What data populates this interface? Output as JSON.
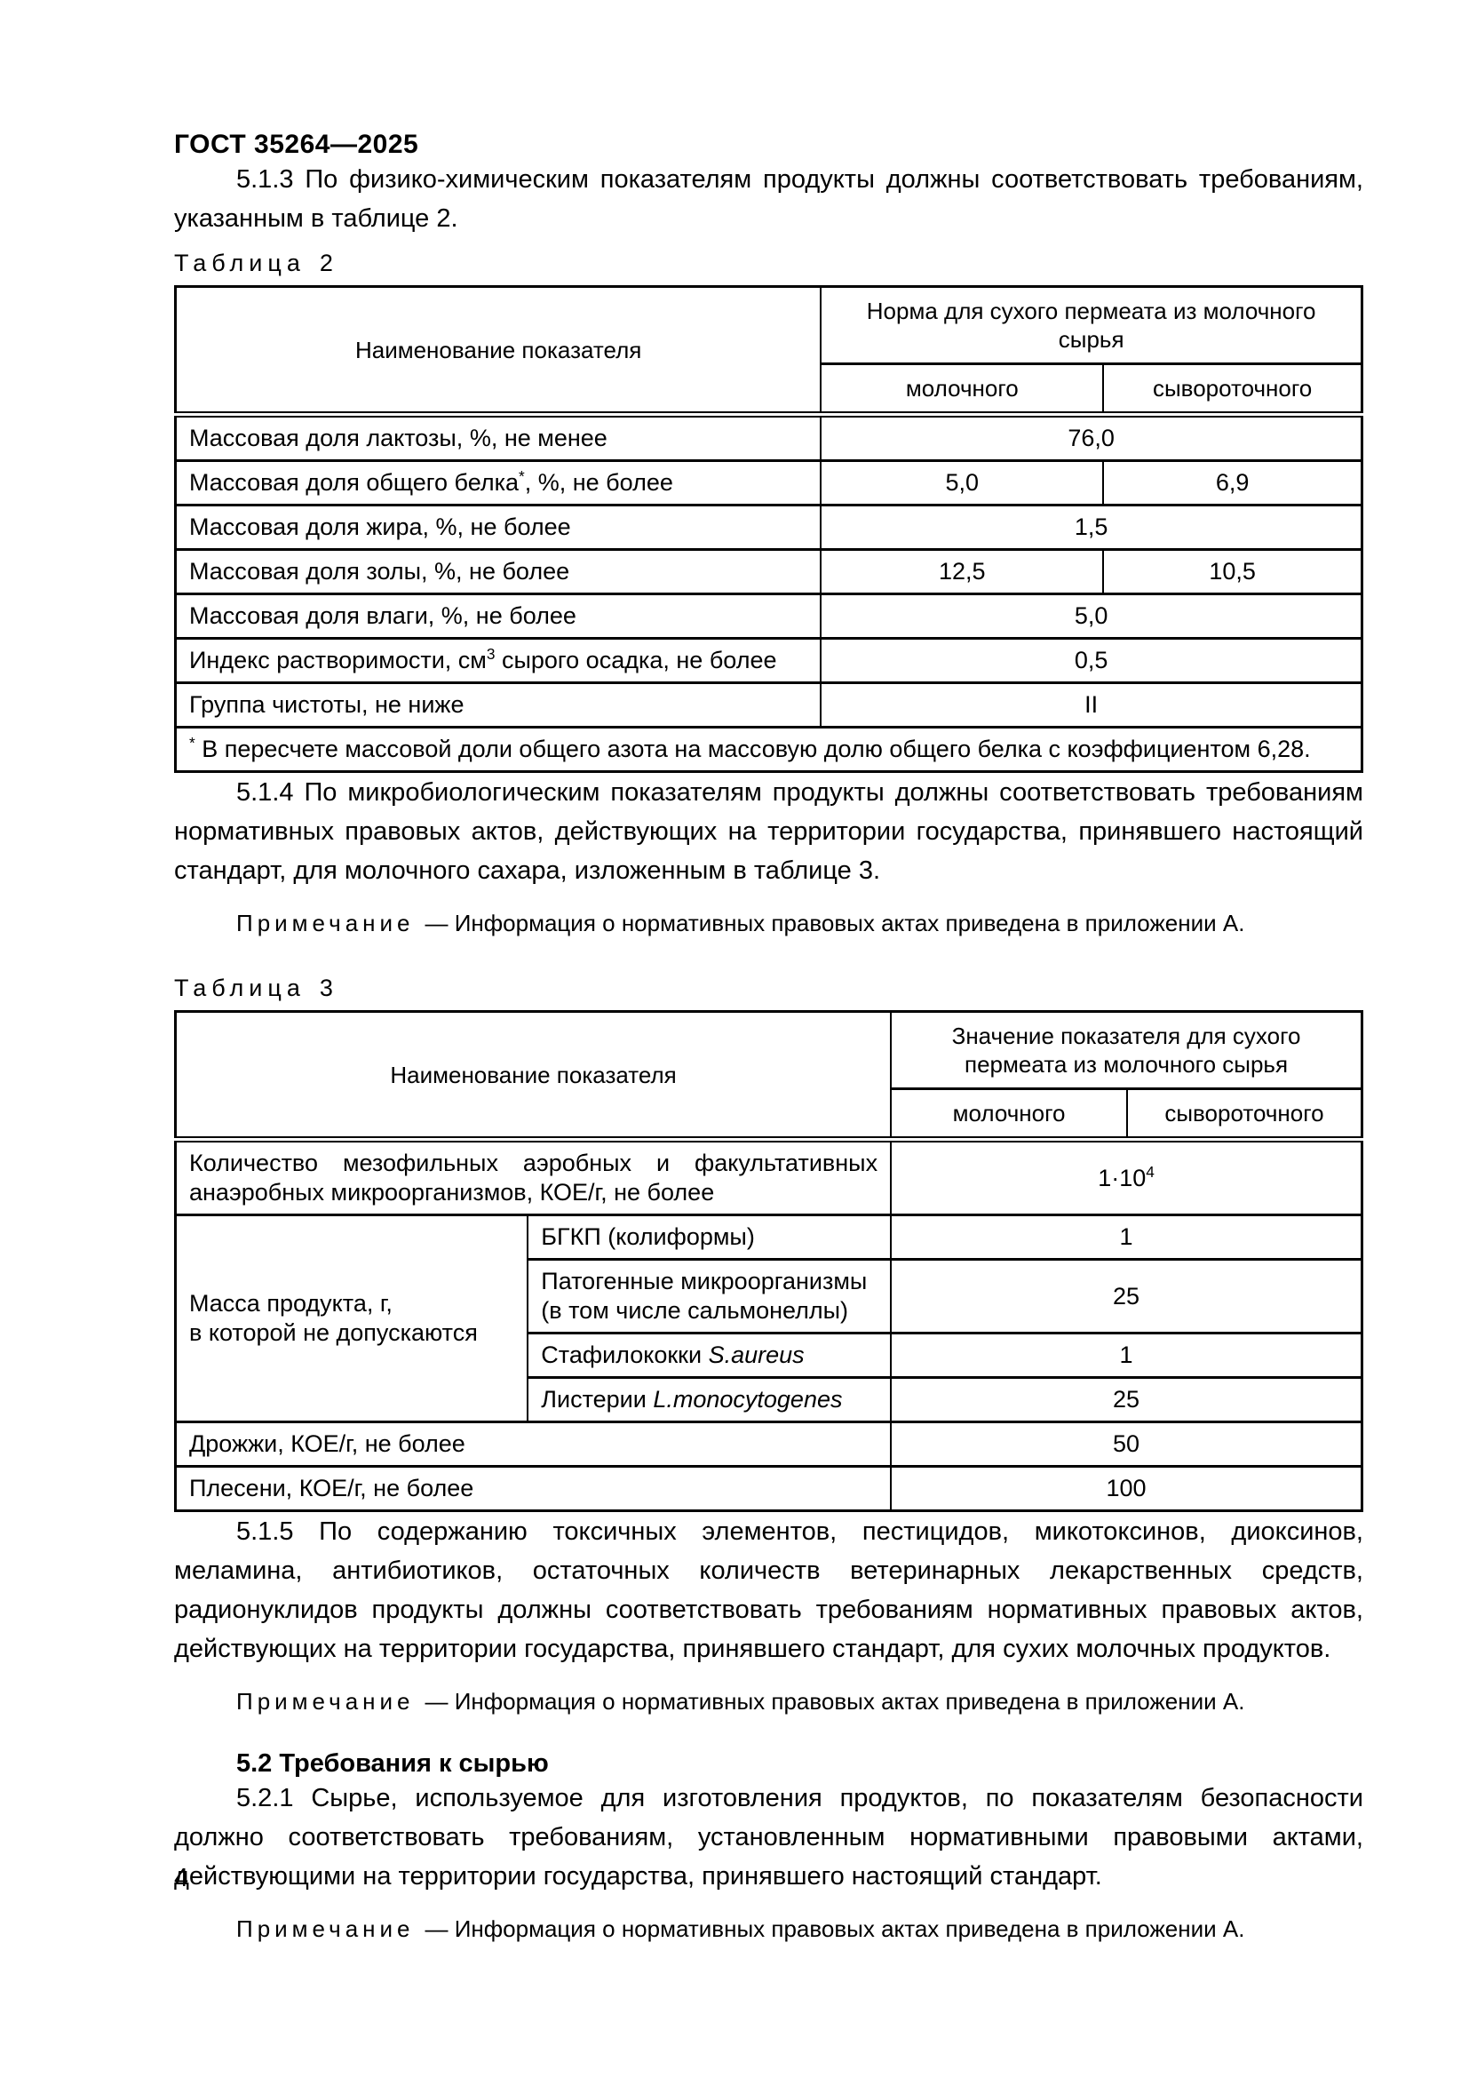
{
  "page": {
    "running_header": "ГОСТ 35264—2025",
    "page_number": "4"
  },
  "labels": {
    "table2": {
      "word": "Таблица",
      "num": "2"
    },
    "table3": {
      "word": "Таблица",
      "num": "3"
    }
  },
  "note": {
    "label": "Примечание",
    "text": "— Информация о нормативных правовых актах приведена в приложении А."
  },
  "sections": {
    "p513": "5.1.3 По физико-химическим показателям продукты должны соответствовать требованиям, ука­занным в таблице 2.",
    "p514": "5.1.4 По микробиологическим показателям продукты должны соответствовать требованиям нор­мативных правовых актов, действующих на территории государства, принявшего настоящий стандарт, для молочного сахара, изложенным в таблице 3.",
    "p515": "5.1.5 По содержанию токсичных элементов, пестицидов, микотоксинов, диоксинов, меламина, антибиотиков, остаточных количеств ветеринарных лекарственных средств, радионуклидов продукты должны соответствовать требованиям нормативных правовых актов, действующих на территории госу­дарства, принявшего стандарт, для сухих молочных продуктов.",
    "h52": "5.2 Требования к сырью",
    "p521": "5.2.1 Сырье, используемое для изготовления продуктов, по показателям безопасности должно соответствовать требованиям, установленным нормативными правовыми актами, действующими на территории государства, принявшего настоящий стандарт."
  },
  "table2": {
    "header": {
      "name": "Наименование показателя",
      "group": "Норма для сухого пермеата из молочного сырья",
      "sub_milk": "молочного",
      "sub_whey": "сывороточного"
    },
    "rows": [
      {
        "name": "Массовая доля лактозы, %, не менее",
        "merged": "76,0"
      },
      {
        "name_pre": "Массовая доля общего белка",
        "name_sup": "*",
        "name_post": ", %, не более",
        "milk": "5,0",
        "whey": "6,9"
      },
      {
        "name": "Массовая доля жира, %, не более",
        "merged": "1,5"
      },
      {
        "name": "Массовая доля золы, %, не более",
        "milk": "12,5",
        "whey": "10,5"
      },
      {
        "name": "Массовая доля влаги, %, не более",
        "merged": "5,0"
      },
      {
        "name_pre": "Индекс растворимости, см",
        "name_sup": "3",
        "name_post": " сырого осадка, не более",
        "merged": "0,5"
      },
      {
        "name": "Группа чистоты, не ниже",
        "merged": "II"
      }
    ],
    "footnote": {
      "sup": "*",
      "text": " В пересчете массовой доли общего азота на массовую долю общего белка с коэффициентом 6,28."
    }
  },
  "table3": {
    "header": {
      "name": "Наименование показателя",
      "group": "Значение показателя для сухого пермеата из молочного сырья",
      "sub_milk": "молочного",
      "sub_whey": "сывороточного"
    },
    "rows": {
      "kmafanm": {
        "name": "Количество мезофильных аэробных и факультативных анаэроб­ных микроорганизмов, КОЕ/г, не более",
        "value_pre": "1·10",
        "value_sup": "4"
      },
      "mass_label": {
        "line1": "Масса продукта, г,",
        "line2": "в которой не допускаются"
      },
      "bgkp": {
        "name": "БГКП (колиформы)",
        "value": "1"
      },
      "pathogens": {
        "name": "Патогенные микроорганизмы (в том числе сальмонеллы)",
        "value": "25"
      },
      "staph": {
        "name_pre": "Стафилококки ",
        "name_it": "S.aureus",
        "value": "1"
      },
      "listeria": {
        "name_pre": "Листерии ",
        "name_it": "L.monocytogenes",
        "value": "25"
      },
      "yeast": {
        "name": "Дрожжи, КОЕ/г, не более",
        "value": "50"
      },
      "mold": {
        "name": "Плесени, КОЕ/г, не более",
        "value": "100"
      }
    }
  }
}
